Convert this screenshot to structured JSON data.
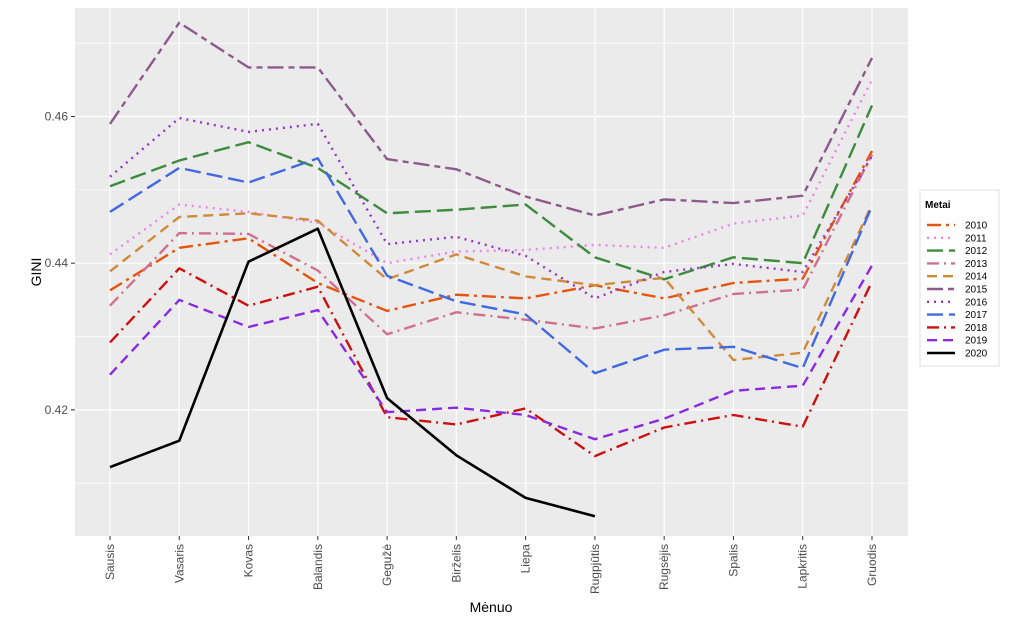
{
  "chart_data": {
    "type": "line",
    "xlabel": "Mėnuo",
    "ylabel": "GINI",
    "categories": [
      "Sausis",
      "Vasaris",
      "Kovas",
      "Balandis",
      "Gegužė",
      "Birželis",
      "Liepa",
      "Rugpjūtis",
      "Rugsėjis",
      "Spalis",
      "Lapkritis",
      "Gruodis"
    ],
    "ylim": [
      0.4028,
      0.4748
    ],
    "yticks": [
      0.42,
      0.44,
      0.46
    ],
    "ytick_labels": [
      "0.42",
      "0.44",
      "0.46"
    ],
    "grid": true,
    "legend": {
      "title": "Metai",
      "position": "right"
    },
    "series": [
      {
        "name": "2010",
        "color": "#e6550d",
        "dash": "longdash-dot",
        "values": [
          0.4363,
          0.4421,
          0.4434,
          0.4373,
          0.4335,
          0.4357,
          0.4352,
          0.437,
          0.4352,
          0.4373,
          0.4379,
          0.4553
        ]
      },
      {
        "name": "2011",
        "color": "#ee82ee",
        "dash": "dotted",
        "values": [
          0.4412,
          0.448,
          0.447,
          0.4455,
          0.44,
          0.4416,
          0.4418,
          0.4425,
          0.4421,
          0.4454,
          0.4465,
          0.465
        ]
      },
      {
        "name": "2012",
        "color": "#3d8b3d",
        "dash": "longdash",
        "values": [
          0.4505,
          0.454,
          0.4565,
          0.453,
          0.4468,
          0.4473,
          0.448,
          0.4408,
          0.4378,
          0.4408,
          0.44,
          0.4615
        ]
      },
      {
        "name": "2013",
        "color": "#d07090",
        "dash": "dash-dot",
        "values": [
          0.4342,
          0.4441,
          0.444,
          0.439,
          0.4303,
          0.4333,
          0.4323,
          0.4311,
          0.4329,
          0.4358,
          0.4364,
          0.4548
        ]
      },
      {
        "name": "2014",
        "color": "#d08a3a",
        "dash": "dashed",
        "values": [
          0.4389,
          0.4463,
          0.4468,
          0.4458,
          0.4378,
          0.4412,
          0.4382,
          0.437,
          0.438,
          0.4268,
          0.4278,
          0.448
        ]
      },
      {
        "name": "2015",
        "color": "#8e5a8e",
        "dash": "twodash",
        "values": [
          0.459,
          0.4728,
          0.4667,
          0.4667,
          0.4542,
          0.4528,
          0.4491,
          0.4465,
          0.4487,
          0.4482,
          0.4492,
          0.468
        ]
      },
      {
        "name": "2016",
        "color": "#9932cc",
        "dash": "dotted",
        "values": [
          0.4518,
          0.4598,
          0.4579,
          0.459,
          0.4426,
          0.4436,
          0.441,
          0.4352,
          0.4388,
          0.4399,
          0.4388,
          0.4546
        ]
      },
      {
        "name": "2017",
        "color": "#4169e1",
        "dash": "longdash",
        "values": [
          0.447,
          0.453,
          0.451,
          0.4543,
          0.4383,
          0.4348,
          0.433,
          0.425,
          0.4282,
          0.4286,
          0.4257,
          0.4478
        ]
      },
      {
        "name": "2018",
        "color": "#cc1010",
        "dash": "dash-dot",
        "values": [
          0.4292,
          0.4393,
          0.4342,
          0.4368,
          0.419,
          0.418,
          0.4202,
          0.4137,
          0.4176,
          0.4193,
          0.4177,
          0.4375
        ]
      },
      {
        "name": "2019",
        "color": "#8a2be2",
        "dash": "dashed",
        "values": [
          0.4248,
          0.435,
          0.4313,
          0.4336,
          0.4197,
          0.4203,
          0.4193,
          0.416,
          0.4188,
          0.4226,
          0.4233,
          0.4397
        ]
      },
      {
        "name": "2020",
        "color": "#000000",
        "dash": "solid",
        "values": [
          0.4122,
          0.4158,
          0.4402,
          0.4447,
          0.4216,
          0.4138,
          0.408,
          0.4055,
          null,
          null,
          null,
          null
        ]
      }
    ]
  }
}
